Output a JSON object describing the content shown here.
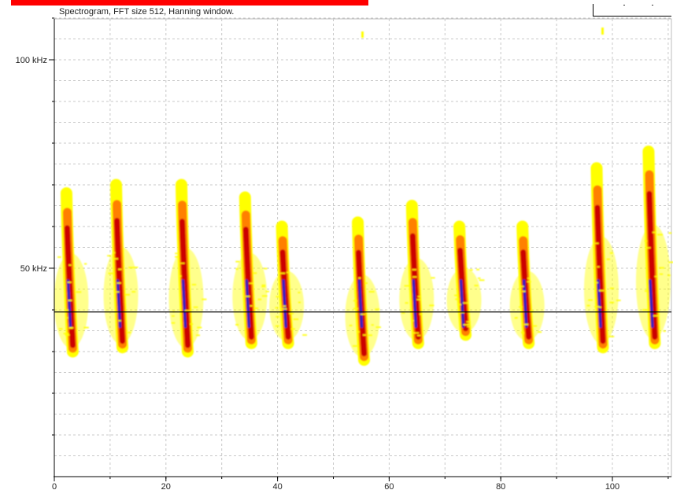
{
  "header": {
    "title": "Spectrogram, FFT size 512, Hanning window.",
    "accent_bar_color": "#ff0000"
  },
  "chart_data": {
    "type": "heatmap",
    "title": "Spectrogram, FFT size 512, Hanning window.",
    "xlabel": "",
    "ylabel": "",
    "x_ticks": [
      0,
      20,
      40,
      60,
      80,
      100
    ],
    "x_tick_labels": [
      "0",
      "20",
      "40",
      "60",
      "80",
      "100"
    ],
    "y_ticks": [
      50,
      100
    ],
    "y_tick_labels": [
      "50 kHz",
      "100 kHz"
    ],
    "xlim": [
      0,
      111
    ],
    "ylim": [
      0,
      110
    ],
    "grid": true,
    "reference_line_khz": 39.5,
    "colormap": [
      "#ffff00",
      "#ff8000",
      "#cc0000",
      "#3020c0"
    ],
    "calls": [
      {
        "t": 2.6,
        "f_top": 68,
        "f_bottom": 30
      },
      {
        "t": 11.5,
        "f_top": 70,
        "f_bottom": 31
      },
      {
        "t": 23.2,
        "f_top": 70,
        "f_bottom": 30
      },
      {
        "t": 34.6,
        "f_top": 67,
        "f_bottom": 32
      },
      {
        "t": 41.2,
        "f_top": 60,
        "f_bottom": 32
      },
      {
        "t": 54.8,
        "f_top": 61,
        "f_bottom": 28
      },
      {
        "t": 64.5,
        "f_top": 65,
        "f_bottom": 32
      },
      {
        "t": 73.0,
        "f_top": 60,
        "f_bottom": 34
      },
      {
        "t": 84.3,
        "f_top": 60,
        "f_bottom": 32
      },
      {
        "t": 97.6,
        "f_top": 74,
        "f_bottom": 31
      },
      {
        "t": 106.9,
        "f_top": 78,
        "f_bottom": 32
      }
    ]
  }
}
